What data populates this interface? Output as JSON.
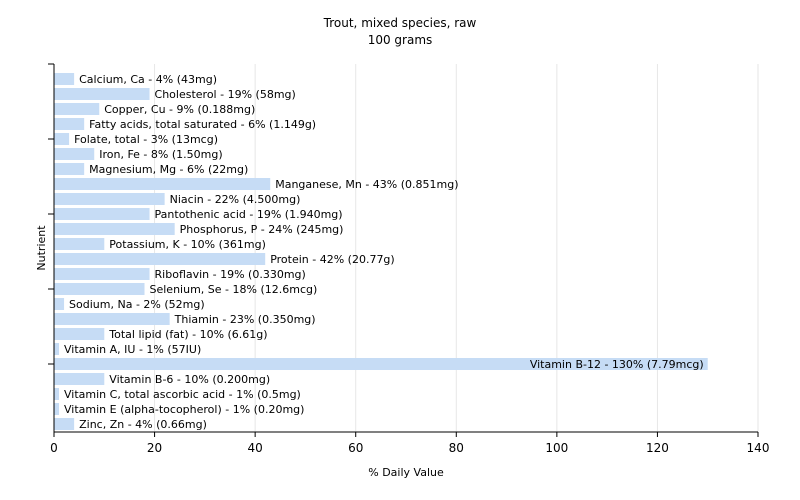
{
  "chart_data": {
    "type": "bar",
    "orientation": "horizontal",
    "title": "Trout, mixed species, raw",
    "subtitle": "100 grams",
    "xlabel": "% Daily Value",
    "ylabel": "Nutrient",
    "xlim": [
      0,
      140
    ],
    "xticks": [
      0,
      20,
      40,
      60,
      80,
      100,
      120,
      140
    ],
    "grid": true,
    "bar_color": "#c6dcf5",
    "categories": [
      "Calcium, Ca",
      "Cholesterol",
      "Copper, Cu",
      "Fatty acids, total saturated",
      "Folate, total",
      "Iron, Fe",
      "Magnesium, Mg",
      "Manganese, Mn",
      "Niacin",
      "Pantothenic acid",
      "Phosphorus, P",
      "Potassium, K",
      "Protein",
      "Riboflavin",
      "Selenium, Se",
      "Sodium, Na",
      "Thiamin",
      "Total lipid (fat)",
      "Vitamin A, IU",
      "Vitamin B-12",
      "Vitamin B-6",
      "Vitamin C, total ascorbic acid",
      "Vitamin E (alpha-tocopherol)",
      "Zinc, Zn"
    ],
    "values": [
      4,
      19,
      9,
      6,
      3,
      8,
      6,
      43,
      22,
      19,
      24,
      10,
      42,
      19,
      18,
      2,
      23,
      10,
      1,
      130,
      10,
      1,
      1,
      4
    ],
    "labels": [
      "Calcium, Ca - 4% (43mg)",
      "Cholesterol - 19% (58mg)",
      "Copper, Cu - 9% (0.188mg)",
      "Fatty acids, total saturated - 6% (1.149g)",
      "Folate, total - 3% (13mcg)",
      "Iron, Fe - 8% (1.50mg)",
      "Magnesium, Mg - 6% (22mg)",
      "Manganese, Mn - 43% (0.851mg)",
      "Niacin - 22% (4.500mg)",
      "Pantothenic acid - 19% (1.940mg)",
      "Phosphorus, P - 24% (245mg)",
      "Potassium, K - 10% (361mg)",
      "Protein - 42% (20.77g)",
      "Riboflavin - 19% (0.330mg)",
      "Selenium, Se - 18% (12.6mcg)",
      "Sodium, Na - 2% (52mg)",
      "Thiamin - 23% (0.350mg)",
      "Total lipid (fat) - 10% (6.61g)",
      "Vitamin A, IU - 1% (57IU)",
      "Vitamin B-12 - 130% (7.79mcg)",
      "Vitamin B-6 - 10% (0.200mg)",
      "Vitamin C, total ascorbic acid - 1% (0.5mg)",
      "Vitamin E (alpha-tocopherol) - 1% (0.20mg)",
      "Zinc, Zn - 4% (0.66mg)"
    ]
  }
}
